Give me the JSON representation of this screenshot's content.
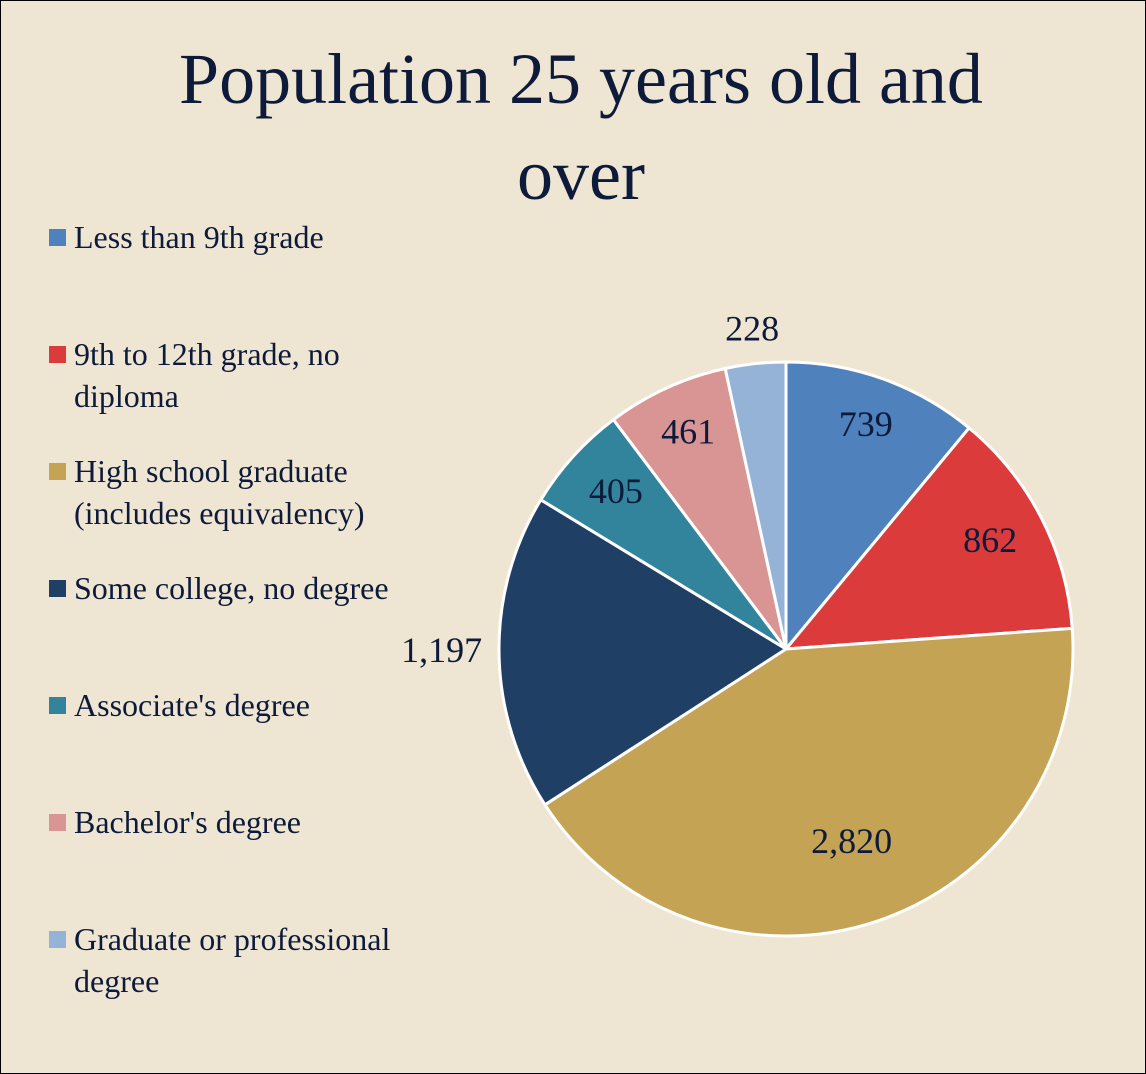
{
  "chart_data": {
    "type": "pie",
    "title": "Population 25 years old and over",
    "categories": [
      "Less than 9th grade",
      "9th to 12th grade, no diploma",
      "High school graduate (includes equivalency)",
      "Some college, no degree",
      "Associate's degree",
      "Bachelor's degree",
      "Graduate or professional degree"
    ],
    "values": [
      739,
      862,
      2820,
      1197,
      405,
      461,
      228
    ],
    "value_labels": [
      "739",
      "862",
      "2,820",
      "1,197",
      "405",
      "461",
      "228"
    ],
    "colors": [
      "#4f81bd",
      "#dc3b3b",
      "#c4a354",
      "#1f3f64",
      "#31849b",
      "#d99594",
      "#95b3d7"
    ],
    "legend": "left"
  }
}
